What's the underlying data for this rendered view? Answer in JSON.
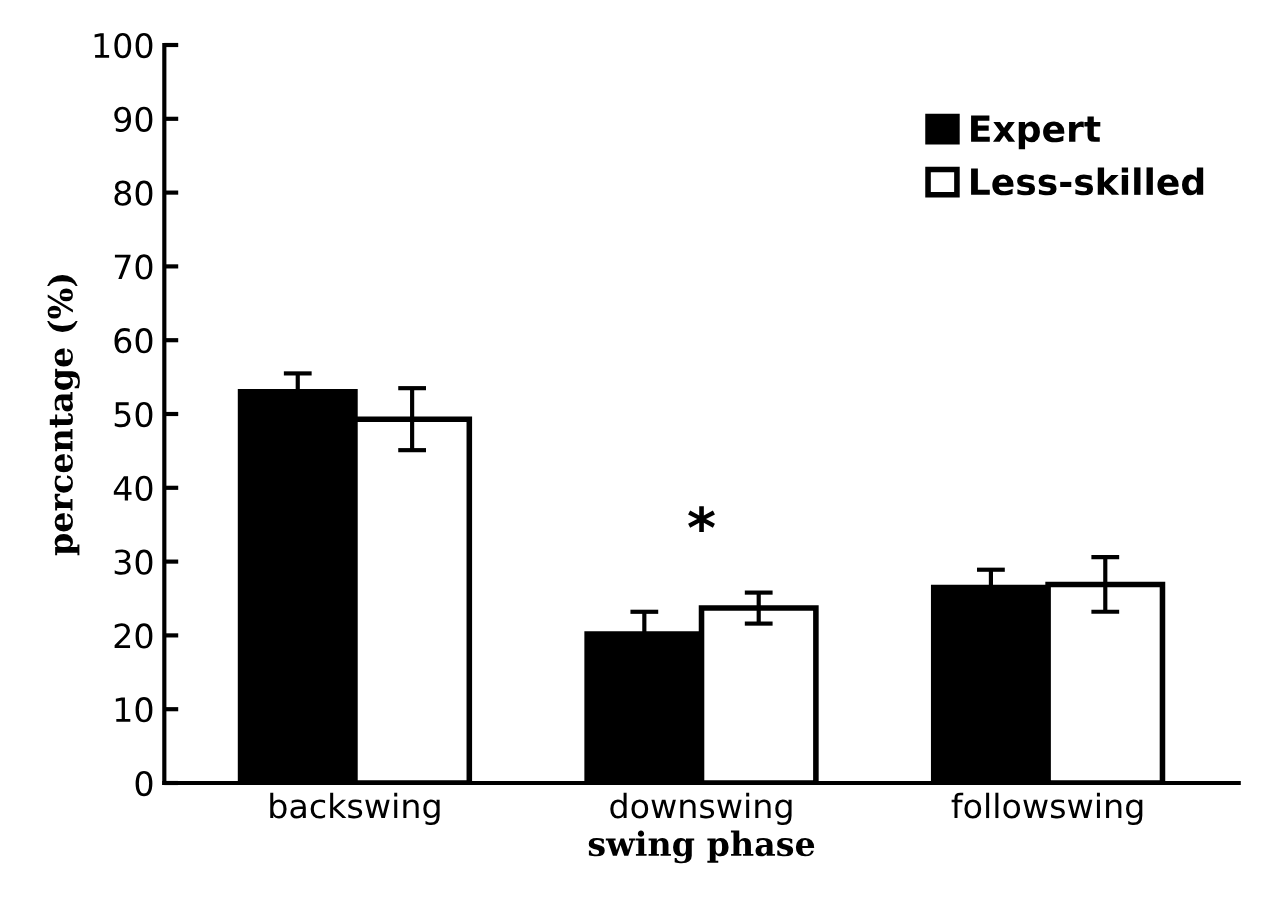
{
  "chart_data": {
    "type": "bar",
    "xlabel": "swing phase",
    "ylabel": "percentage (%)",
    "categories": [
      "backswing",
      "downswing",
      "followswing"
    ],
    "series": [
      {
        "name": "Expert",
        "color": "#000000",
        "values": [
          53.0,
          20.2,
          26.5
        ],
        "errors": [
          2.5,
          3.0,
          2.4
        ]
      },
      {
        "name": "Less-skilled",
        "color": "#ffffff",
        "values": [
          49.3,
          23.7,
          26.9
        ],
        "errors": [
          4.2,
          2.1,
          3.7
        ]
      }
    ],
    "ylim": [
      0,
      100
    ],
    "yticks": [
      0,
      10,
      20,
      30,
      40,
      50,
      60,
      70,
      80,
      90,
      100
    ],
    "annotations": [
      "*"
    ],
    "grid": false,
    "legend": "top right"
  }
}
